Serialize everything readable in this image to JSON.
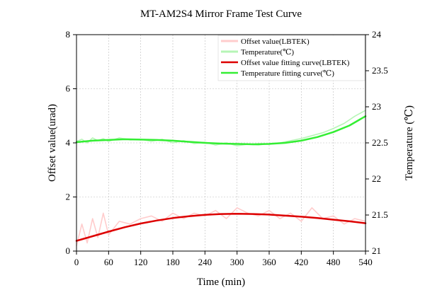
{
  "chart_data": {
    "type": "line",
    "title": "MT-AM2S4 Mirror Frame Test Curve",
    "xlabel": "Time (min)",
    "ylabel_left": "Offset value(urad)",
    "ylabel_right": "Temperature (℃)",
    "xlim": [
      0,
      540
    ],
    "ylim_left": [
      0,
      8
    ],
    "ylim_right": [
      21,
      24
    ],
    "x_ticks": [
      0,
      60,
      120,
      180,
      240,
      300,
      360,
      420,
      480,
      540
    ],
    "y_ticks_left": [
      0,
      2,
      4,
      6,
      8
    ],
    "y_ticks_right": [
      21,
      21.5,
      22,
      22.5,
      23,
      23.5,
      24
    ],
    "grid": true,
    "legend_position": "top-right",
    "series": [
      {
        "name": "Offset value(LBTEK)",
        "axis": "left",
        "color": "#ffcccc",
        "style": "raw",
        "x": [
          0,
          10,
          20,
          30,
          40,
          50,
          60,
          80,
          100,
          120,
          140,
          160,
          180,
          200,
          220,
          240,
          260,
          280,
          300,
          320,
          340,
          360,
          380,
          400,
          420,
          440,
          460,
          480,
          500,
          520,
          540
        ],
        "values": [
          0.2,
          1.0,
          0.3,
          1.2,
          0.5,
          1.4,
          0.6,
          1.1,
          1.0,
          1.2,
          1.3,
          1.1,
          1.4,
          1.2,
          1.4,
          1.3,
          1.5,
          1.2,
          1.6,
          1.4,
          1.3,
          1.5,
          1.2,
          1.4,
          1.1,
          1.6,
          1.2,
          1.3,
          1.0,
          1.2,
          1.1
        ]
      },
      {
        "name": "Temperature(℃)",
        "axis": "right",
        "color": "#b6f5b6",
        "style": "raw",
        "x": [
          0,
          10,
          20,
          30,
          40,
          50,
          60,
          80,
          100,
          120,
          140,
          160,
          180,
          200,
          220,
          240,
          260,
          280,
          300,
          320,
          340,
          360,
          380,
          400,
          420,
          440,
          460,
          480,
          500,
          520,
          540
        ],
        "values": [
          22.52,
          22.55,
          22.5,
          22.57,
          22.53,
          22.56,
          22.52,
          22.57,
          22.54,
          22.55,
          22.52,
          22.55,
          22.5,
          22.53,
          22.49,
          22.51,
          22.47,
          22.5,
          22.46,
          22.48,
          22.47,
          22.49,
          22.5,
          22.53,
          22.56,
          22.6,
          22.64,
          22.7,
          22.77,
          22.87,
          22.95
        ]
      },
      {
        "name": "Offset value fitting curve(LBTEK)",
        "axis": "left",
        "color": "#dd0000",
        "style": "fit",
        "x": [
          0,
          30,
          60,
          90,
          120,
          150,
          180,
          210,
          240,
          270,
          300,
          330,
          360,
          390,
          420,
          450,
          480,
          510,
          540
        ],
        "values": [
          0.38,
          0.55,
          0.72,
          0.88,
          1.02,
          1.13,
          1.22,
          1.29,
          1.34,
          1.37,
          1.38,
          1.37,
          1.35,
          1.31,
          1.27,
          1.22,
          1.16,
          1.1,
          1.03
        ]
      },
      {
        "name": "Temperature fitting curve(℃)",
        "axis": "right",
        "color": "#33ee33",
        "style": "fit",
        "x": [
          0,
          30,
          60,
          90,
          120,
          150,
          180,
          210,
          240,
          270,
          300,
          330,
          360,
          390,
          420,
          450,
          480,
          510,
          540
        ],
        "values": [
          22.51,
          22.53,
          22.54,
          22.55,
          22.545,
          22.54,
          22.53,
          22.515,
          22.5,
          22.49,
          22.485,
          22.48,
          22.485,
          22.5,
          22.53,
          22.58,
          22.65,
          22.74,
          22.87
        ]
      }
    ]
  }
}
